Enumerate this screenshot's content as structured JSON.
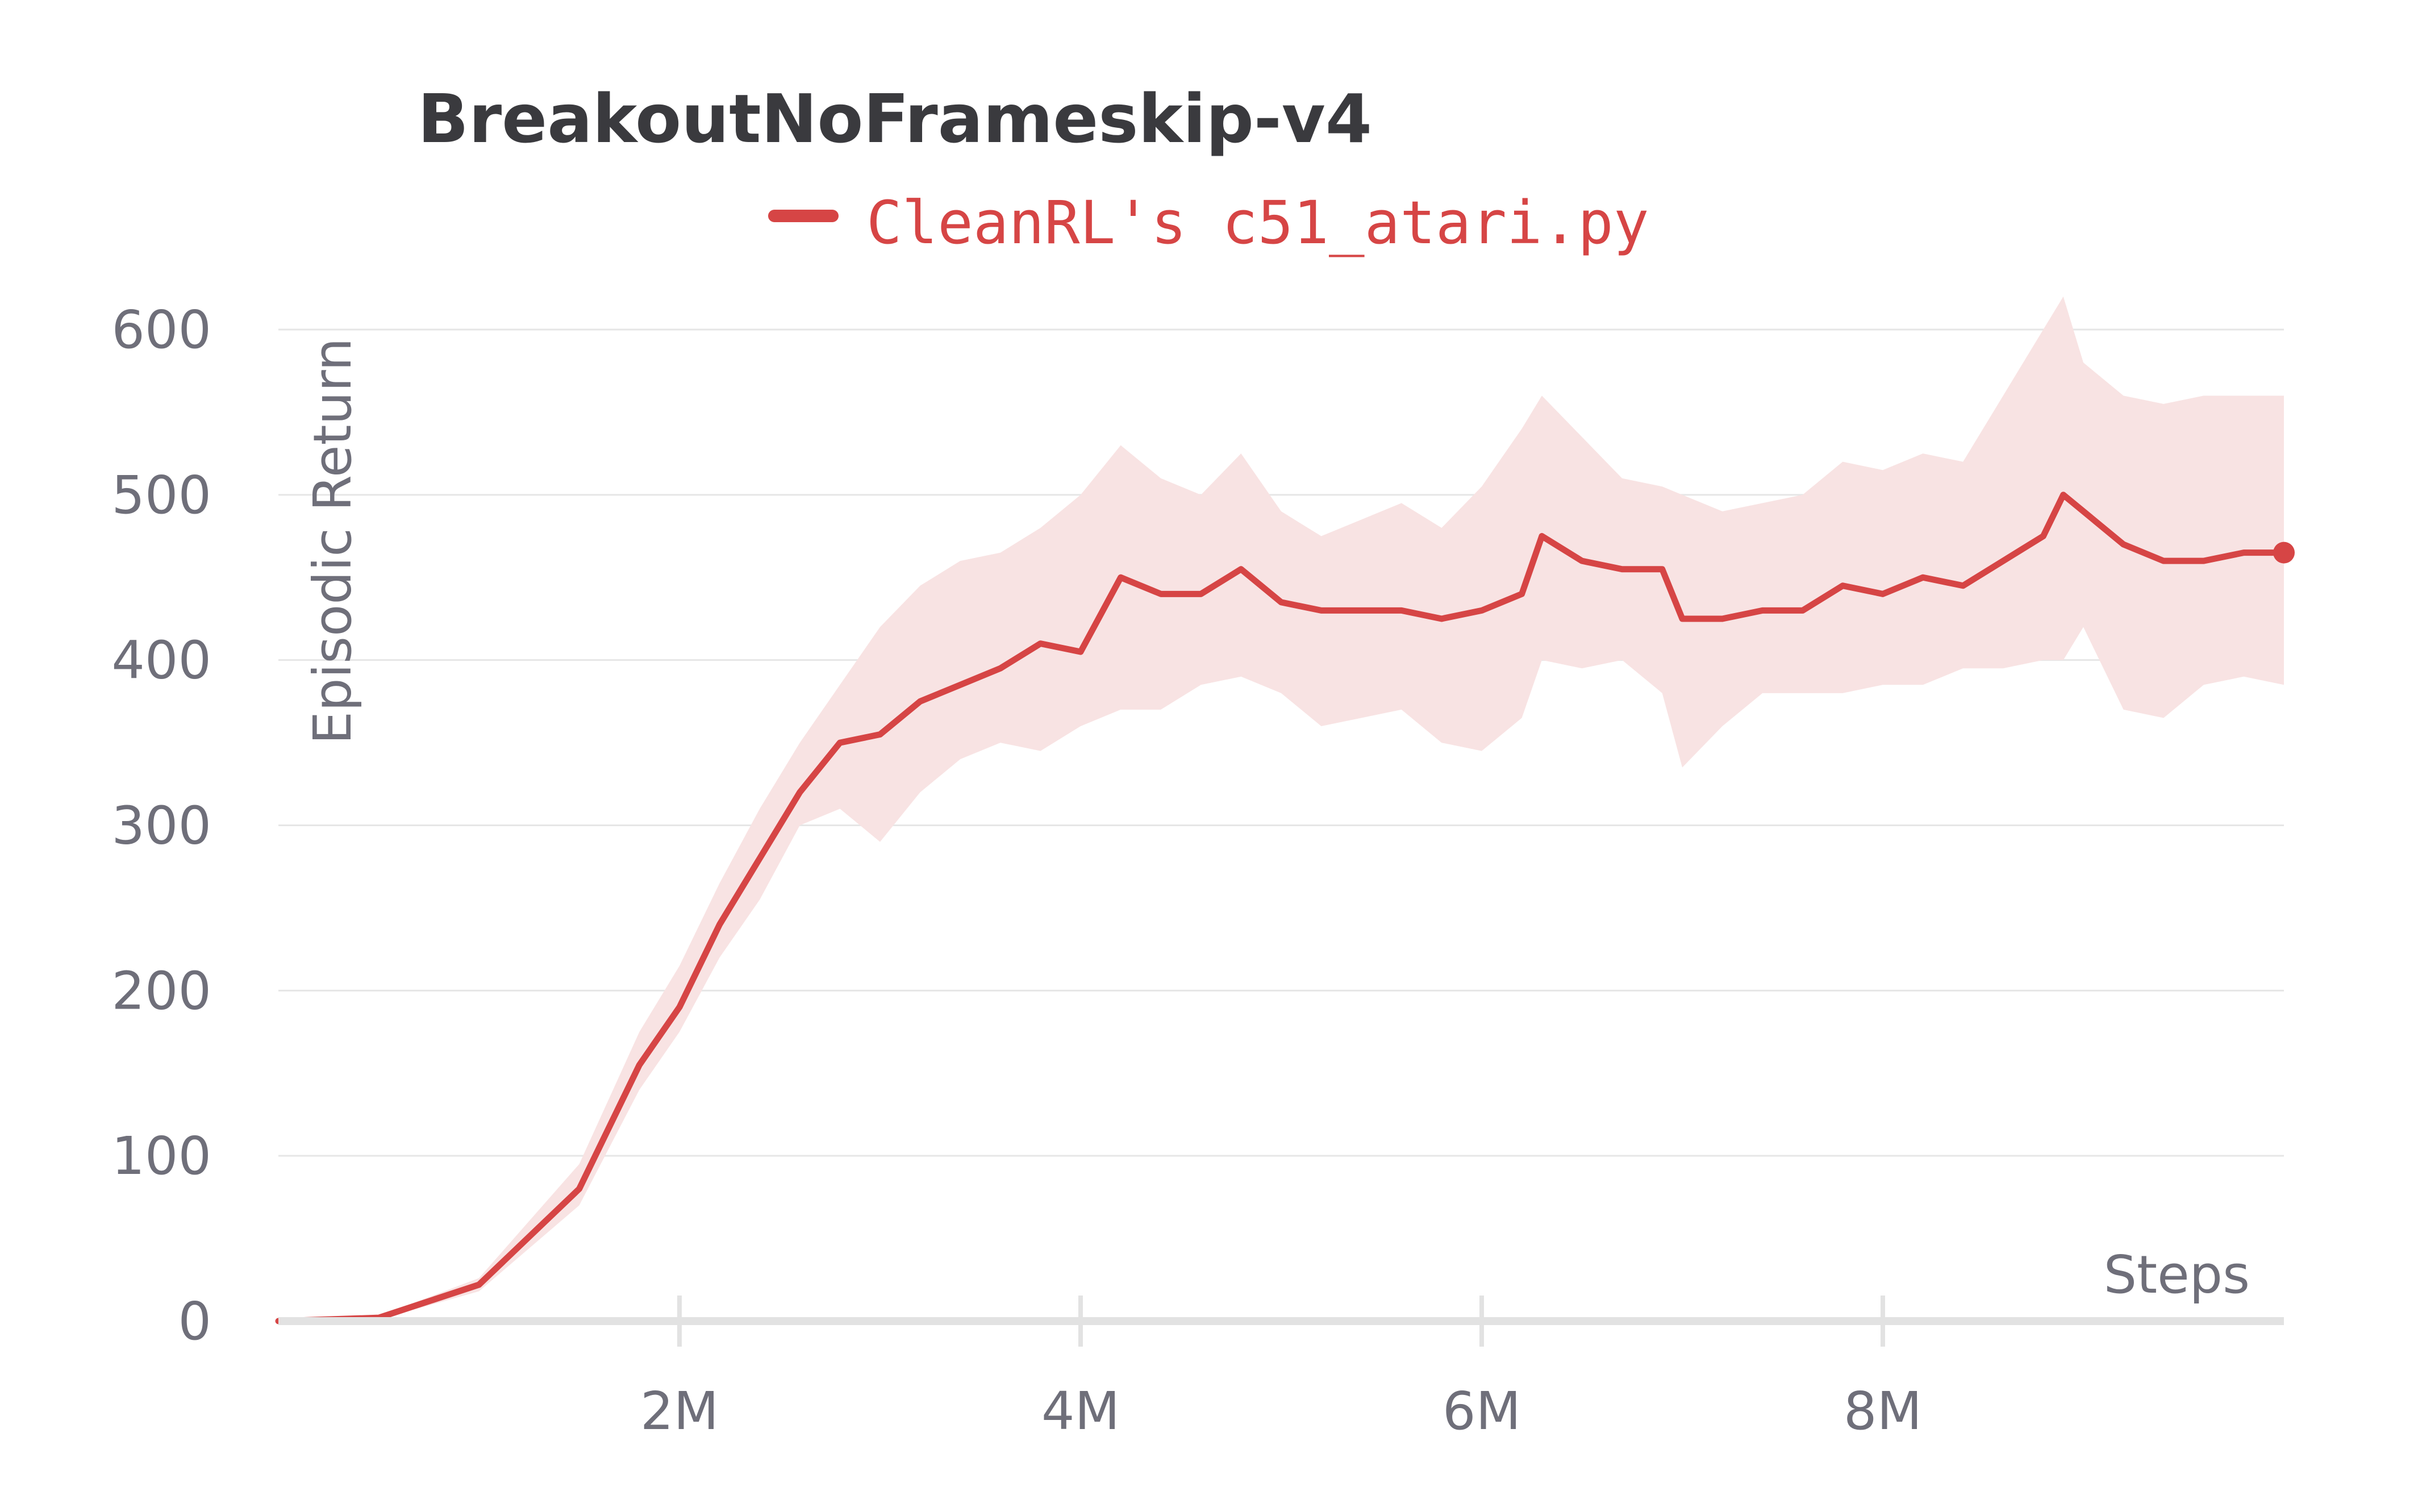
{
  "chart_data": {
    "type": "line",
    "title": "BreakoutNoFrameskip-v4",
    "xlabel": "Steps",
    "ylabel": "Episodic Return",
    "xlim": [
      0,
      10000000
    ],
    "ylim": [
      0,
      600
    ],
    "x_ticks": [
      2000000,
      4000000,
      6000000,
      8000000
    ],
    "x_tick_labels": [
      "2M",
      "4M",
      "6M",
      "8M"
    ],
    "y_ticks": [
      0,
      100,
      200,
      300,
      400,
      500,
      600
    ],
    "y_tick_labels": [
      "0",
      "100",
      "200",
      "300",
      "400",
      "500",
      "600"
    ],
    "grid": true,
    "legend_position": "top-center",
    "series": [
      {
        "name": "CleanRL's c51_atari.py",
        "color": "#d64545",
        "band_color": "#f8e3e3",
        "x": [
          0,
          500000,
          1000000,
          1500000,
          1800000,
          2000000,
          2200000,
          2400000,
          2600000,
          2800000,
          3000000,
          3200000,
          3400000,
          3600000,
          3800000,
          4000000,
          4200000,
          4400000,
          4600000,
          4800000,
          5000000,
          5200000,
          5400000,
          5600000,
          5800000,
          6000000,
          6200000,
          6300000,
          6500000,
          6700000,
          6900000,
          7000000,
          7200000,
          7400000,
          7600000,
          7800000,
          8000000,
          8200000,
          8400000,
          8600000,
          8800000,
          8900000,
          9000000,
          9200000,
          9400000,
          9600000,
          9800000,
          10000000
        ],
        "y": [
          0,
          2,
          22,
          80,
          155,
          190,
          240,
          280,
          320,
          350,
          355,
          375,
          385,
          395,
          410,
          405,
          450,
          440,
          440,
          455,
          435,
          430,
          430,
          430,
          425,
          430,
          440,
          475,
          460,
          455,
          455,
          425,
          425,
          430,
          430,
          445,
          440,
          450,
          445,
          460,
          475,
          500,
          490,
          470,
          460,
          460,
          465,
          465
        ],
        "y_lower": [
          0,
          1,
          18,
          70,
          140,
          175,
          220,
          255,
          300,
          310,
          290,
          320,
          340,
          350,
          345,
          360,
          370,
          370,
          385,
          390,
          380,
          360,
          365,
          370,
          350,
          345,
          365,
          400,
          395,
          400,
          380,
          335,
          360,
          380,
          380,
          380,
          385,
          385,
          395,
          395,
          400,
          400,
          420,
          370,
          365,
          385,
          390,
          385
        ],
        "y_upper": [
          0,
          3,
          26,
          95,
          175,
          215,
          265,
          310,
          350,
          385,
          420,
          445,
          460,
          465,
          480,
          500,
          530,
          510,
          500,
          525,
          490,
          475,
          485,
          495,
          480,
          505,
          540,
          560,
          535,
          510,
          505,
          500,
          490,
          495,
          500,
          520,
          515,
          525,
          520,
          560,
          600,
          620,
          580,
          560,
          555,
          560,
          560,
          560
        ]
      }
    ]
  }
}
